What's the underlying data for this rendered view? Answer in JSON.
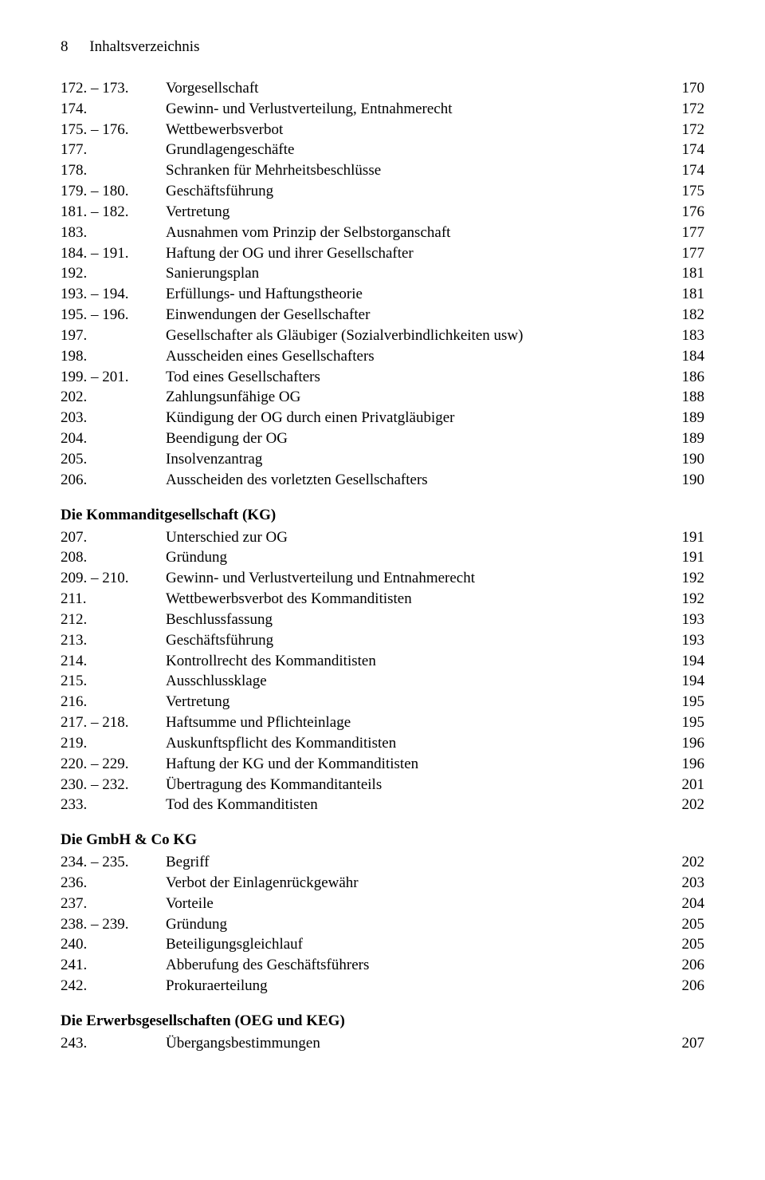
{
  "header": {
    "page_number": "8",
    "running_title": "Inhaltsverzeichnis"
  },
  "sections": [
    {
      "heading": null,
      "entries": [
        {
          "num": "172. – 173.",
          "title": "Vorgesellschaft",
          "page": "170"
        },
        {
          "num": "174.",
          "title": "Gewinn- und Verlustverteilung, Entnahmerecht",
          "page": "172"
        },
        {
          "num": "175. – 176.",
          "title": "Wettbewerbsverbot",
          "page": "172"
        },
        {
          "num": "177.",
          "title": "Grundlagengeschäfte",
          "page": "174"
        },
        {
          "num": "178.",
          "title": "Schranken für Mehrheitsbeschlüsse",
          "page": "174"
        },
        {
          "num": "179. – 180.",
          "title": "Geschäftsführung",
          "page": "175"
        },
        {
          "num": "181. – 182.",
          "title": "Vertretung",
          "page": "176"
        },
        {
          "num": "183.",
          "title": "Ausnahmen vom Prinzip der Selbstorganschaft",
          "page": "177"
        },
        {
          "num": "184. – 191.",
          "title": "Haftung der OG und ihrer Gesellschafter",
          "page": "177"
        },
        {
          "num": "192.",
          "title": "Sanierungsplan",
          "page": "181"
        },
        {
          "num": "193. – 194.",
          "title": "Erfüllungs- und Haftungstheorie",
          "page": "181"
        },
        {
          "num": "195. – 196.",
          "title": "Einwendungen der Gesellschafter",
          "page": "182"
        },
        {
          "num": "197.",
          "title": "Gesellschafter als Gläubiger (Sozialverbindlichkeiten usw)",
          "page": "183"
        },
        {
          "num": "198.",
          "title": "Ausscheiden eines Gesellschafters",
          "page": "184"
        },
        {
          "num": "199. – 201.",
          "title": "Tod eines Gesellschafters",
          "page": "186"
        },
        {
          "num": "202.",
          "title": "Zahlungsunfähige OG",
          "page": "188"
        },
        {
          "num": "203.",
          "title": "Kündigung der OG durch einen Privatgläubiger",
          "page": "189"
        },
        {
          "num": "204.",
          "title": "Beendigung der OG",
          "page": "189"
        },
        {
          "num": "205.",
          "title": "Insolvenzantrag",
          "page": "190"
        },
        {
          "num": "206.",
          "title": "Ausscheiden des vorletzten Gesellschafters",
          "page": "190"
        }
      ]
    },
    {
      "heading": "Die Kommanditgesellschaft (KG)",
      "entries": [
        {
          "num": "207.",
          "title": "Unterschied zur OG",
          "page": "191"
        },
        {
          "num": "208.",
          "title": "Gründung",
          "page": "191"
        },
        {
          "num": "209. – 210.",
          "title": "Gewinn- und Verlustverteilung und Entnahmerecht",
          "page": "192"
        },
        {
          "num": "211.",
          "title": "Wettbewerbsverbot des Kommanditisten",
          "page": "192"
        },
        {
          "num": "212.",
          "title": "Beschlussfassung",
          "page": "193"
        },
        {
          "num": "213.",
          "title": "Geschäftsführung",
          "page": "193"
        },
        {
          "num": "214.",
          "title": "Kontrollrecht des Kommanditisten",
          "page": "194"
        },
        {
          "num": "215.",
          "title": "Ausschlussklage",
          "page": "194"
        },
        {
          "num": "216.",
          "title": "Vertretung",
          "page": "195"
        },
        {
          "num": "217. – 218.",
          "title": "Haftsumme und Pflichteinlage",
          "page": "195"
        },
        {
          "num": "219.",
          "title": "Auskunftspflicht des Kommanditisten",
          "page": "196"
        },
        {
          "num": "220. – 229.",
          "title": "Haftung der KG und der Kommanditisten",
          "page": "196"
        },
        {
          "num": "230. – 232.",
          "title": "Übertragung des Kommanditanteils",
          "page": "201"
        },
        {
          "num": "233.",
          "title": "Tod des Kommanditisten",
          "page": "202"
        }
      ]
    },
    {
      "heading": "Die GmbH & Co KG",
      "entries": [
        {
          "num": "234. – 235.",
          "title": "Begriff",
          "page": "202"
        },
        {
          "num": "236.",
          "title": "Verbot der Einlagenrückgewähr",
          "page": "203"
        },
        {
          "num": "237.",
          "title": "Vorteile",
          "page": "204"
        },
        {
          "num": "238. – 239.",
          "title": "Gründung",
          "page": "205"
        },
        {
          "num": "240.",
          "title": "Beteiligungsgleichlauf",
          "page": "205"
        },
        {
          "num": "241.",
          "title": "Abberufung des Geschäftsführers",
          "page": "206"
        },
        {
          "num": "242.",
          "title": "Prokuraerteilung",
          "page": "206"
        }
      ]
    },
    {
      "heading": "Die Erwerbsgesellschaften (OEG und KEG)",
      "entries": [
        {
          "num": "243.",
          "title": "Übergangsbestimmungen",
          "page": "207"
        }
      ]
    }
  ]
}
